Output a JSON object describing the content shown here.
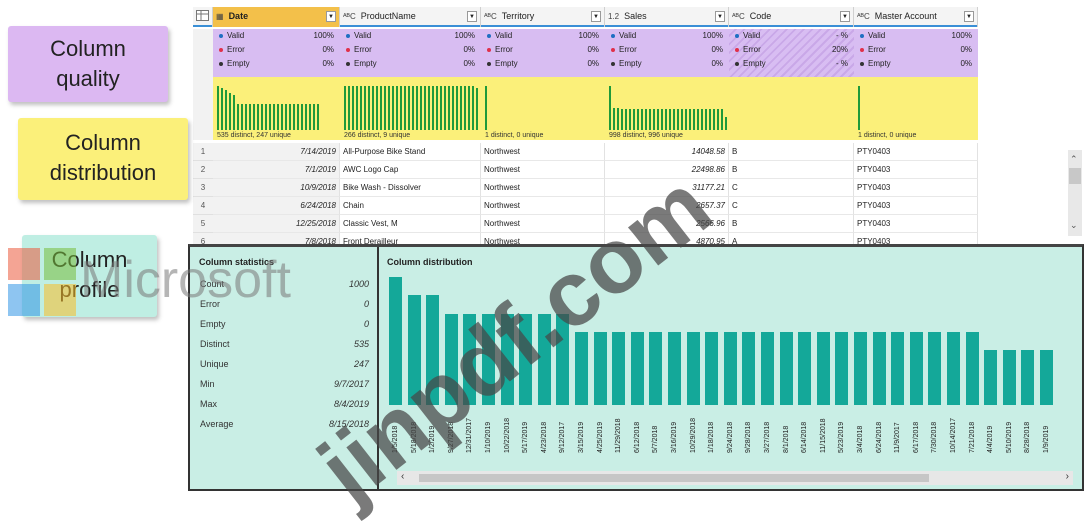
{
  "callouts": {
    "quality": "Column quality",
    "distribution": "Column distribution",
    "profile": "Column profile"
  },
  "grid": {
    "columns": [
      {
        "type": "▦",
        "name": "Date",
        "selected": true
      },
      {
        "type": "ᴬᴮC",
        "name": "ProductName",
        "selected": false
      },
      {
        "type": "ᴬᴮC",
        "name": "Territory",
        "selected": false
      },
      {
        "type": "1.2",
        "name": "Sales",
        "selected": false
      },
      {
        "type": "ᴬᴮC",
        "name": "Code",
        "selected": false
      },
      {
        "type": "ᴬᴮC",
        "name": "Master Account",
        "selected": false
      }
    ],
    "quality": [
      {
        "valid": "100%",
        "error": "0%",
        "empty": "0%"
      },
      {
        "valid": "100%",
        "error": "0%",
        "empty": "0%"
      },
      {
        "valid": "100%",
        "error": "0%",
        "empty": "0%"
      },
      {
        "valid": "100%",
        "error": "0%",
        "empty": "0%"
      },
      {
        "valid": "- %",
        "error": "20%",
        "empty": "- %"
      },
      {
        "valid": "100%",
        "error": "0%",
        "empty": "0%"
      }
    ],
    "quality_labels": {
      "valid": "Valid",
      "error": "Error",
      "empty": "Empty"
    },
    "distribution": [
      {
        "summary": "535 distinct, 247 unique",
        "bars": [
          1,
          0.95,
          0.9,
          0.85,
          0.8,
          0.6,
          0.6,
          0.6,
          0.58,
          0.58,
          0.58,
          0.58,
          0.58,
          0.58,
          0.58,
          0.58,
          0.58,
          0.58,
          0.58,
          0.58,
          0.58,
          0.58,
          0.58,
          0.58,
          0.58,
          0.58
        ]
      },
      {
        "summary": "266 distinct, 9 unique",
        "bars": [
          1,
          1,
          1,
          1,
          1,
          1,
          1,
          1,
          1,
          1,
          1,
          1,
          1,
          1,
          1,
          1,
          1,
          1,
          1,
          1,
          1,
          1,
          1,
          1,
          1,
          1,
          1,
          1,
          1,
          1,
          1,
          1,
          1,
          0.95
        ]
      },
      {
        "summary": "1 distinct, 0 unique",
        "bars": [
          1
        ]
      },
      {
        "summary": "998 distinct, 996 unique",
        "bars": [
          1,
          0.5,
          0.5,
          0.48,
          0.48,
          0.48,
          0.48,
          0.48,
          0.48,
          0.48,
          0.48,
          0.48,
          0.48,
          0.48,
          0.48,
          0.48,
          0.48,
          0.48,
          0.48,
          0.48,
          0.48,
          0.48,
          0.48,
          0.48,
          0.48,
          0.48,
          0.48,
          0.48,
          0.48,
          0.3
        ]
      },
      {
        "summary": "",
        "bars": []
      },
      {
        "summary": "1 distinct, 0 unique",
        "bars": [
          1
        ]
      }
    ],
    "rows": [
      {
        "num": "1",
        "date": "7/14/2019",
        "product": "All-Purpose Bike Stand",
        "territory": "Northwest",
        "sales": "14048.58",
        "code": "B",
        "account": "PTY0403"
      },
      {
        "num": "2",
        "date": "7/1/2019",
        "product": "AWC Logo Cap",
        "territory": "Northwest",
        "sales": "22498.86",
        "code": "B",
        "account": "PTY0403"
      },
      {
        "num": "3",
        "date": "10/9/2018",
        "product": "Bike Wash - Dissolver",
        "territory": "Northwest",
        "sales": "31177.21",
        "code": "C",
        "account": "PTY0403"
      },
      {
        "num": "4",
        "date": "6/24/2018",
        "product": "Chain",
        "territory": "Northwest",
        "sales": "2657.37",
        "code": "C",
        "account": "PTY0403"
      },
      {
        "num": "5",
        "date": "12/25/2018",
        "product": "Classic Vest, M",
        "territory": "Northwest",
        "sales": "2566.96",
        "code": "B",
        "account": "PTY0403"
      },
      {
        "num": "6",
        "date": "7/8/2018",
        "product": "Front Derailleur",
        "territory": "Northwest",
        "sales": "4870.95",
        "code": "A",
        "account": "PTY0403"
      }
    ]
  },
  "stats": {
    "title": "Column statistics",
    "items": [
      {
        "label": "Count",
        "value": "1000"
      },
      {
        "label": "Error",
        "value": "0"
      },
      {
        "label": "Empty",
        "value": "0"
      },
      {
        "label": "Distinct",
        "value": "535"
      },
      {
        "label": "Unique",
        "value": "247"
      },
      {
        "label": "Min",
        "value": "9/7/2017"
      },
      {
        "label": "Max",
        "value": "8/4/2019"
      },
      {
        "label": "Average",
        "value": "8/15/2018"
      }
    ]
  },
  "chart_data": {
    "type": "bar",
    "title": "Column distribution",
    "categories": [
      "1/5/2018",
      "5/18/2018",
      "1/2/2019",
      "9/27/2018",
      "12/31/2017",
      "1/10/2019",
      "10/22/2018",
      "5/17/2019",
      "4/23/2018",
      "9/12/2017",
      "3/15/2019",
      "4/25/2019",
      "11/29/2018",
      "6/12/2018",
      "5/7/2018",
      "3/16/2019",
      "10/29/2018",
      "1/18/2018",
      "9/24/2018",
      "9/28/2018",
      "3/27/2018",
      "8/1/2018",
      "6/14/2018",
      "11/15/2018",
      "5/23/2019",
      "3/4/2018",
      "6/24/2018",
      "11/9/2017",
      "6/17/2018",
      "7/30/2018",
      "10/14/2017",
      "7/21/2018",
      "4/4/2019",
      "5/10/2019",
      "8/28/2018",
      "1/9/2019"
    ],
    "values": [
      7,
      6,
      6,
      5,
      5,
      5,
      5,
      5,
      5,
      5,
      4,
      4,
      4,
      4,
      4,
      4,
      4,
      4,
      4,
      4,
      4,
      4,
      4,
      4,
      4,
      4,
      4,
      4,
      4,
      4,
      4,
      4,
      3,
      3,
      3,
      3
    ],
    "ylim": [
      0,
      7
    ]
  },
  "watermark": {
    "text": "jinpdf.com",
    "logo_text": "Microsoft"
  },
  "colors": {
    "quality_bg": "#d8bdf2",
    "distribution_bg": "#fbf07a",
    "profile_bg": "#c9eee5",
    "profile_bar": "#14a899",
    "mini_bar": "#1f9a3a",
    "selected_header": "#f3c04a"
  }
}
